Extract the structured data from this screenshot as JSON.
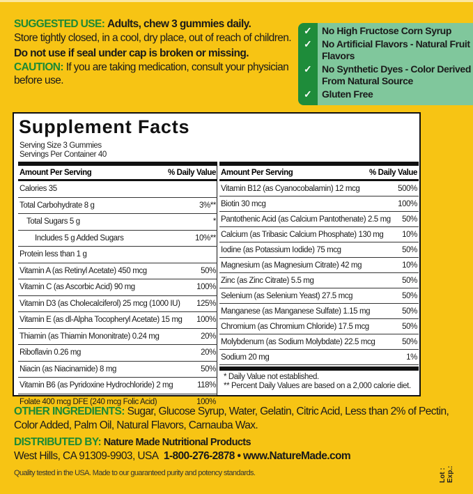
{
  "suggested_use": {
    "label": "SUGGESTED USE:",
    "text": "Adults, chew 3 gummies daily."
  },
  "storage": "Store tightly closed, in a cool, dry place, out of reach of children.",
  "seal_warning": "Do not use if seal under cap is broken or missing.",
  "caution": {
    "label": "CAUTION:",
    "text": "If you are taking medication, consult your physician before use."
  },
  "claims": [
    "No High Fructose Corn Syrup",
    "No Artificial Flavors - Natural Fruit Flavors",
    "No Synthetic Dyes - Color Derived From Natural Source",
    "Gluten Free"
  ],
  "colors": {
    "background": "#F7C414",
    "green": "#1c8a34",
    "claims_bg": "#80c79c"
  },
  "facts": {
    "title": "Supplement Facts",
    "serving_size": "Serving Size 3 Gummies",
    "servings_per_container": "Servings Per Container 40",
    "header": {
      "amount": "Amount Per Serving",
      "dv": "% Daily Value"
    },
    "left": [
      {
        "name": "Calories 35",
        "dv": ""
      },
      {
        "name": "Total Carbohydrate  8 g",
        "dv": "3%**"
      },
      {
        "name": "Total Sugars  5 g",
        "dv": "*"
      },
      {
        "name": "Includes 5 g Added Sugars",
        "dv": "10%**"
      },
      {
        "name": "Protein less than  1 g",
        "dv": ""
      },
      {
        "name": "Vitamin A (as Retinyl Acetate)  450 mcg",
        "dv": "50%"
      },
      {
        "name": "Vitamin C (as Ascorbic Acid)  90 mg",
        "dv": "100%"
      },
      {
        "name": "Vitamin D3 (as Cholecalciferol)  25 mcg (1000 IU)",
        "dv": "125%"
      },
      {
        "name": "Vitamin E (as dl-Alpha Tocopheryl Acetate)  15 mg",
        "dv": "100%"
      },
      {
        "name": "Thiamin (as Thiamin Mononitrate)  0.24 mg",
        "dv": "20%"
      },
      {
        "name": "Riboflavin  0.26 mg",
        "dv": "20%"
      },
      {
        "name": "Niacin (as Niacinamide)  8 mg",
        "dv": "50%"
      },
      {
        "name": "Vitamin B6 (as Pyridoxine Hydrochloride)  2 mg",
        "dv": "118%"
      },
      {
        "name": "Folate  400 mcg DFE (240 mcg Folic Acid)",
        "dv": "100%"
      }
    ],
    "right": [
      {
        "name": "Vitamin B12 (as Cyanocobalamin)  12 mcg",
        "dv": "500%"
      },
      {
        "name": "Biotin  30 mcg",
        "dv": "100%"
      },
      {
        "name": "Pantothenic Acid (as Calcium Pantothenate)  2.5 mg",
        "dv": "50%"
      },
      {
        "name": "Calcium (as Tribasic Calcium Phosphate)  130 mg",
        "dv": "10%"
      },
      {
        "name": "Iodine (as Potassium Iodide)  75 mcg",
        "dv": "50%"
      },
      {
        "name": "Magnesium (as Magnesium Citrate)  42 mg",
        "dv": "10%"
      },
      {
        "name": "Zinc (as Zinc Citrate)  5.5 mg",
        "dv": "50%"
      },
      {
        "name": "Selenium (as Selenium Yeast)  27.5 mcg",
        "dv": "50%"
      },
      {
        "name": "Manganese (as Manganese Sulfate)  1.15 mg",
        "dv": "50%"
      },
      {
        "name": "Chromium (as Chromium Chloride)  17.5 mcg",
        "dv": "50%"
      },
      {
        "name": "Molybdenum (as Sodium Molybdate)  22.5 mcg",
        "dv": "50%"
      },
      {
        "name": "Sodium  20 mg",
        "dv": "1%"
      }
    ],
    "footnotes": [
      "* Daily Value not established.",
      "** Percent Daily Values are based on a 2,000 calorie diet."
    ]
  },
  "other_ingredients": {
    "label": "OTHER INGREDIENTS:",
    "text": "Sugar, Glucose Syrup, Water, Gelatin, Citric Acid, Less than 2% of Pectin, Color Added, Palm Oil, Natural Flavors, Carnauba Wax."
  },
  "distributed_by": {
    "label": "DISTRIBUTED BY:",
    "company": "Nature Made Nutritional Products",
    "address": "West Hills, CA 91309-9903, USA",
    "phone": "1-800-276-2878",
    "bullet": "•",
    "website": "www.NatureMade.com"
  },
  "quality": "Quality tested in the USA. Made to our guaranteed purity and potency standards.",
  "lot": "Lot :",
  "exp": "Exp.:"
}
